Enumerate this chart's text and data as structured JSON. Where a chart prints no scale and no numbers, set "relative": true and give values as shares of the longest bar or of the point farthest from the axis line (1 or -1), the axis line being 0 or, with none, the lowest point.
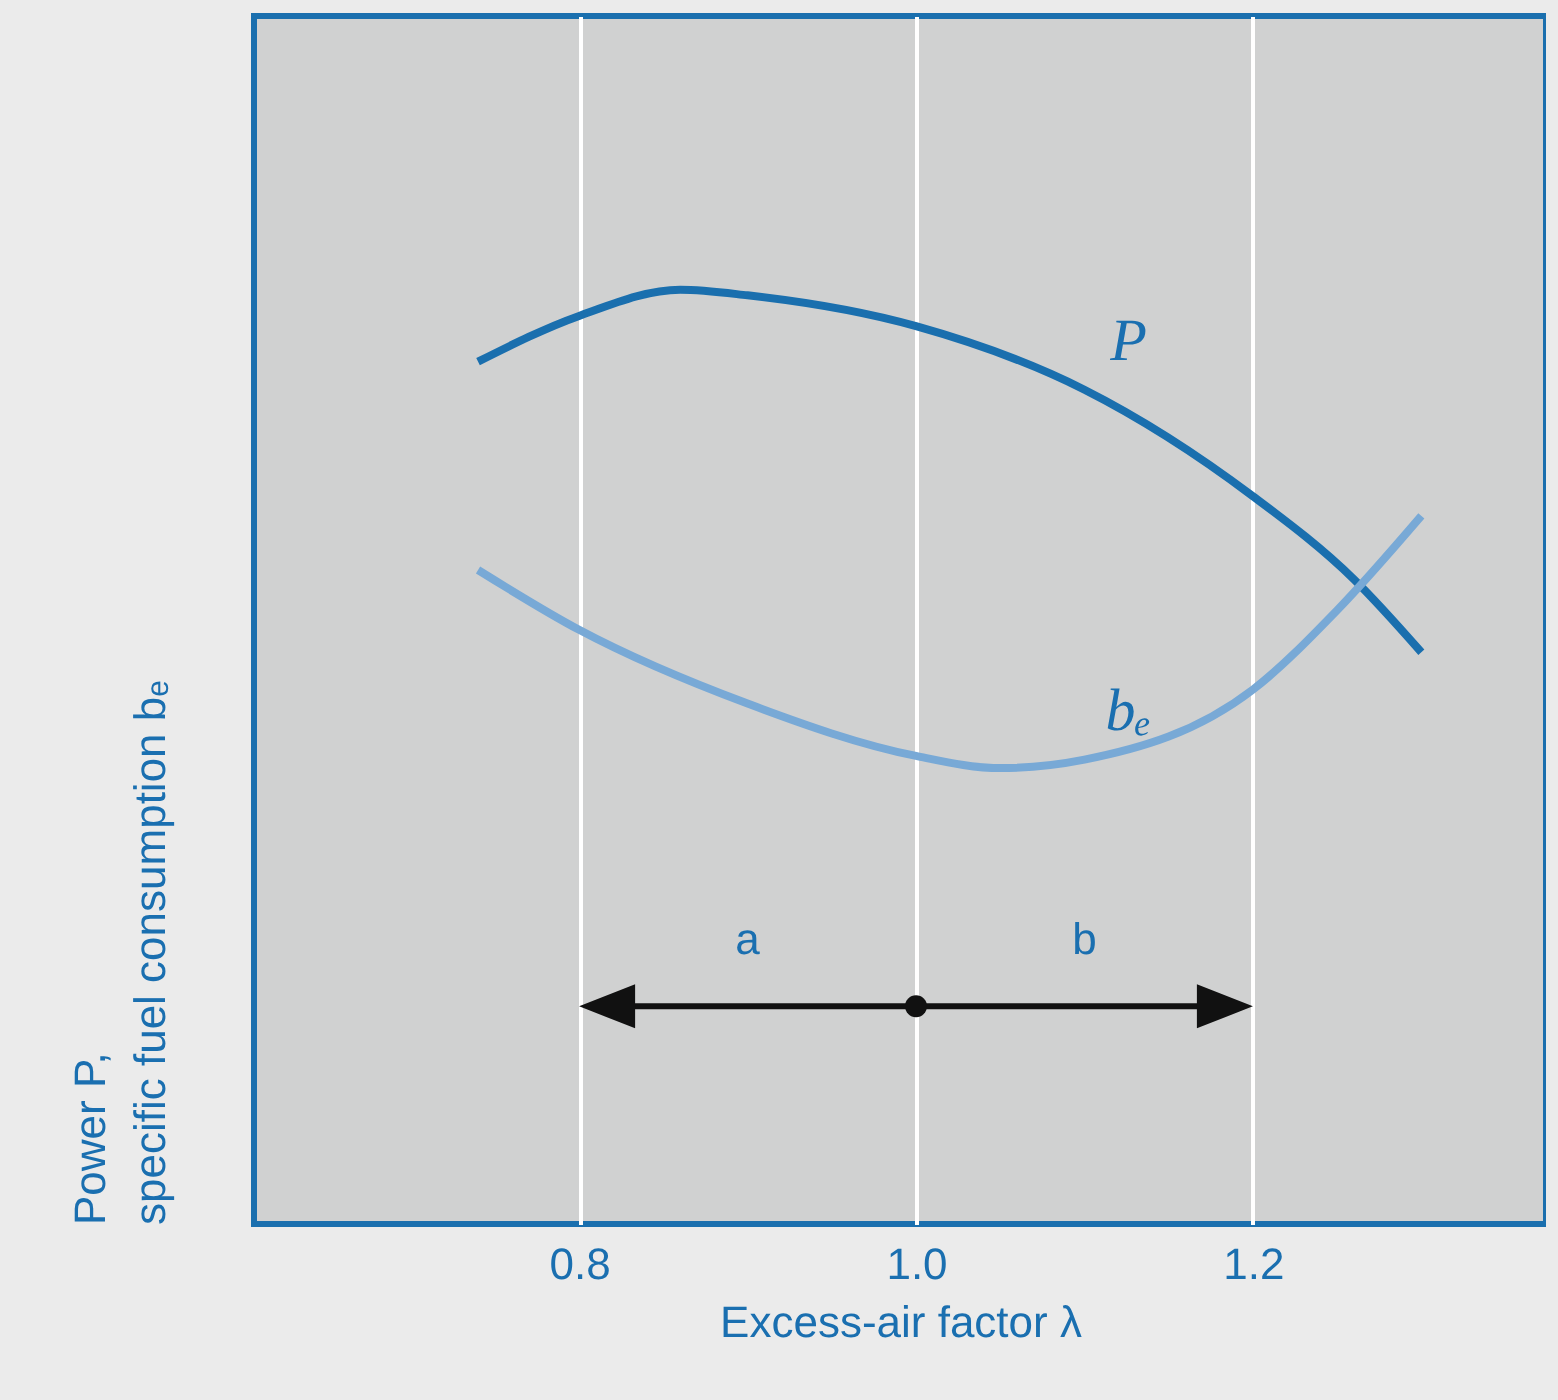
{
  "chart_data": {
    "type": "line",
    "relative": true,
    "xlabel": "Excess-air factor λ",
    "ylabel": "Power P,\nspecific fuel consumption bₑ",
    "xlim": [
      0.607,
      1.374
    ],
    "xticks": [
      {
        "value": 0.8,
        "label": "0.8"
      },
      {
        "value": 1.0,
        "label": "1.0"
      },
      {
        "value": 1.2,
        "label": "1.2"
      }
    ],
    "grid": "x",
    "line_style": "solid",
    "marker": "none",
    "series": [
      {
        "name": "P",
        "color": "#1a6fae",
        "x": [
          0.74,
          0.8,
          0.86,
          0.9,
          1.0,
          1.1,
          1.2,
          1.26,
          1.3
        ],
        "values": [
          0.923,
          0.972,
          1.0,
          0.994,
          0.961,
          0.893,
          0.779,
          0.69,
          0.612
        ]
      },
      {
        "name": "bₑ",
        "color": "#78a9d6",
        "x": [
          0.74,
          0.8,
          0.9,
          1.0,
          1.05,
          1.1,
          1.2,
          1.25,
          1.3
        ],
        "values": [
          0.7,
          0.636,
          0.557,
          0.501,
          0.488,
          0.497,
          0.572,
          0.657,
          0.758
        ]
      }
    ],
    "annotations": [
      "a",
      "b"
    ]
  }
}
